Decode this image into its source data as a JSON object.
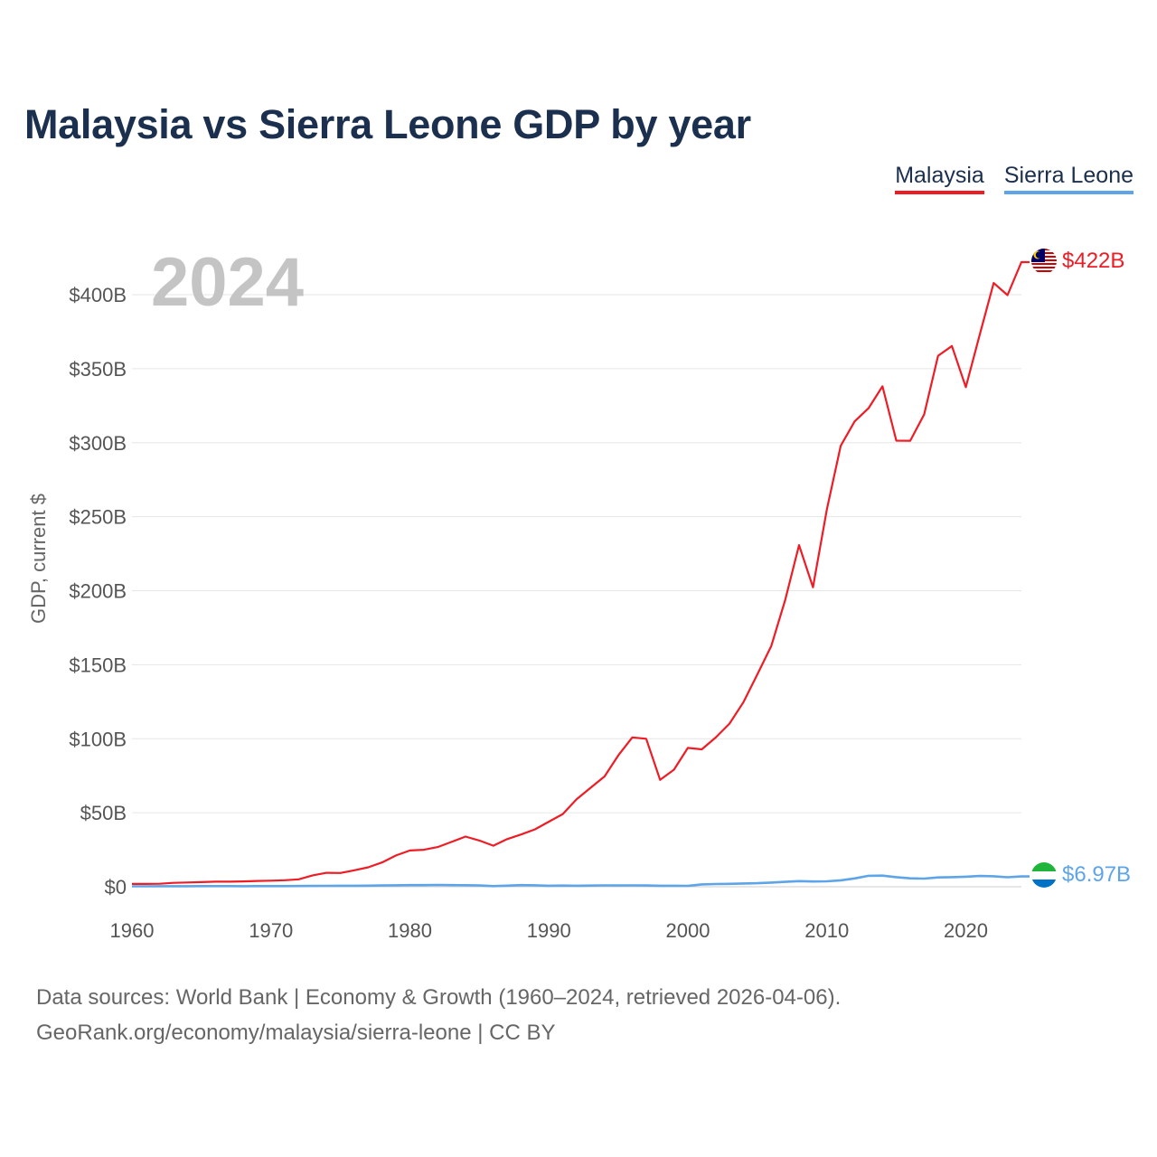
{
  "title": "Malaysia vs Sierra Leone GDP by year",
  "chart_data": {
    "type": "line",
    "title": "Malaysia vs Sierra Leone GDP by year",
    "ylabel": "GDP, current $",
    "xlabel": "",
    "current_year": "2024",
    "xlim": [
      1960,
      2024
    ],
    "ylim": [
      0,
      400
    ],
    "x_ticks": [
      1960,
      1970,
      1980,
      1990,
      2000,
      2010,
      2020
    ],
    "y_ticks": [
      0,
      50,
      100,
      150,
      200,
      250,
      300,
      350,
      400
    ],
    "y_tick_labels": [
      "$0",
      "$50B",
      "$100B",
      "$150B",
      "$200B",
      "$250B",
      "$300B",
      "$350B",
      "$400B"
    ],
    "grid": true,
    "legend_position": "top-right",
    "unit": "billions USD",
    "series": [
      {
        "name": "Malaysia",
        "color": "#ee1c25",
        "end_label": "$422B",
        "x": [
          1960,
          1961,
          1962,
          1963,
          1964,
          1965,
          1966,
          1967,
          1968,
          1969,
          1970,
          1971,
          1972,
          1973,
          1974,
          1975,
          1976,
          1977,
          1978,
          1979,
          1980,
          1981,
          1982,
          1983,
          1984,
          1985,
          1986,
          1987,
          1988,
          1989,
          1990,
          1991,
          1992,
          1993,
          1994,
          1995,
          1996,
          1997,
          1998,
          1999,
          2000,
          2001,
          2002,
          2003,
          2004,
          2005,
          2006,
          2007,
          2008,
          2009,
          2010,
          2011,
          2012,
          2013,
          2014,
          2015,
          2016,
          2017,
          2018,
          2019,
          2020,
          2021,
          2022,
          2023,
          2024
        ],
        "values": [
          1.9,
          1.9,
          2.0,
          2.6,
          2.9,
          3.1,
          3.4,
          3.4,
          3.6,
          3.9,
          4.1,
          4.4,
          5.0,
          7.7,
          9.4,
          9.3,
          11.1,
          13.1,
          16.4,
          21.1,
          24.5,
          25.0,
          26.8,
          30.3,
          33.9,
          31.2,
          27.7,
          32.2,
          35.3,
          38.8,
          44.0,
          49.1,
          59.2,
          66.9,
          74.5,
          88.8,
          100.9,
          100.0,
          72.2,
          79.1,
          93.8,
          92.8,
          100.8,
          110.2,
          124.7,
          143.5,
          162.7,
          193.6,
          230.8,
          202.3,
          255.0,
          297.9,
          314.4,
          323.3,
          338.1,
          301.4,
          301.3,
          319.1,
          358.7,
          365.3,
          337.5,
          373.0,
          407.9,
          399.7,
          422.0
        ]
      },
      {
        "name": "Sierra Leone",
        "color": "#5da5e8",
        "end_label": "$6.97B",
        "x": [
          1960,
          1961,
          1962,
          1963,
          1964,
          1965,
          1966,
          1967,
          1968,
          1969,
          1970,
          1971,
          1972,
          1973,
          1974,
          1975,
          1976,
          1977,
          1978,
          1979,
          1980,
          1981,
          1982,
          1983,
          1984,
          1985,
          1986,
          1987,
          1988,
          1989,
          1990,
          1991,
          1992,
          1993,
          1994,
          1995,
          1996,
          1997,
          1998,
          1999,
          2000,
          2001,
          2002,
          2003,
          2004,
          2005,
          2006,
          2007,
          2008,
          2009,
          2010,
          2011,
          2012,
          2013,
          2014,
          2015,
          2016,
          2017,
          2018,
          2019,
          2020,
          2021,
          2022,
          2023,
          2024
        ],
        "values": [
          0.32,
          0.33,
          0.35,
          0.36,
          0.38,
          0.4,
          0.41,
          0.4,
          0.38,
          0.42,
          0.43,
          0.45,
          0.48,
          0.57,
          0.62,
          0.7,
          0.66,
          0.72,
          0.83,
          0.98,
          1.1,
          1.11,
          1.2,
          1.07,
          1.01,
          0.83,
          0.41,
          0.73,
          1.08,
          0.96,
          0.65,
          0.78,
          0.68,
          0.77,
          0.92,
          0.87,
          0.94,
          0.85,
          0.67,
          0.67,
          0.64,
          1.57,
          1.81,
          1.98,
          2.2,
          2.41,
          2.82,
          3.29,
          3.8,
          3.52,
          3.68,
          4.36,
          5.62,
          7.38,
          7.5,
          6.5,
          5.7,
          5.5,
          6.3,
          6.5,
          6.8,
          7.24,
          7.1,
          6.4,
          6.97
        ]
      }
    ]
  },
  "legend": {
    "items": [
      "Malaysia",
      "Sierra Leone"
    ]
  },
  "source": {
    "line1": "Data sources: World Bank | Economy & Growth (1960–2024, retrieved 2026-04-06).",
    "line2": "GeoRank.org/economy/malaysia/sierra-leone | CC BY"
  }
}
